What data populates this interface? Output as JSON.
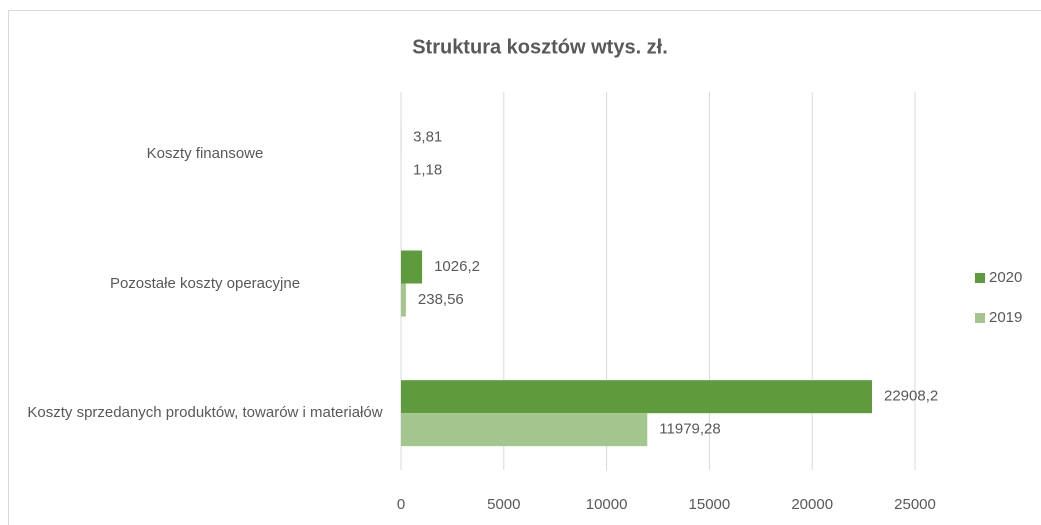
{
  "chart_data": {
    "type": "bar",
    "orientation": "horizontal",
    "title": "Struktura kosztów  wtys. zł.",
    "categories": [
      "Koszty finansowe",
      "Pozostałe koszty operacyjne",
      "Koszty sprzedanych produktów, towarów i materiałów"
    ],
    "series": [
      {
        "name": "2020",
        "color": "#5e9b3c",
        "values": [
          3.81,
          1026.2,
          22908.2
        ],
        "value_labels": [
          "3,81",
          "1026,2",
          "22908,2"
        ]
      },
      {
        "name": "2019",
        "color": "#a3c68f",
        "values": [
          1.18,
          238.56,
          11979.28
        ],
        "value_labels": [
          "1,18",
          "238,56",
          "11979,28"
        ]
      }
    ],
    "xlim": [
      0,
      25000
    ],
    "xticks": [
      0,
      5000,
      10000,
      15000,
      20000,
      25000
    ],
    "grid": true,
    "legend": "right"
  }
}
